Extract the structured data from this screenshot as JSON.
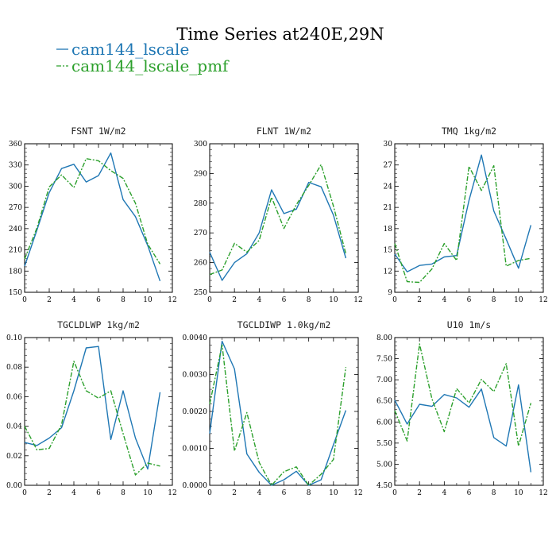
{
  "title": "Time Series at240E,29N",
  "legend": [
    {
      "label": "cam144_lscale",
      "color": "#1f77b4",
      "dash": "solid"
    },
    {
      "label": "cam144_lscale_pmf",
      "color": "#2ca02c",
      "dash": "dashdot"
    }
  ],
  "chart_data": [
    {
      "type": "line",
      "title": "FSNT   1W/m2",
      "x": [
        0,
        1,
        2,
        3,
        4,
        5,
        6,
        7,
        8,
        9,
        10,
        11
      ],
      "xlim": [
        0,
        12
      ],
      "xticks": [
        0,
        2,
        4,
        6,
        8,
        10,
        12
      ],
      "ylim": [
        150,
        360
      ],
      "yticks": [
        150,
        180,
        210,
        240,
        270,
        300,
        330,
        360
      ],
      "ytick_labels": [
        "150",
        "180",
        "210",
        "240",
        "270",
        "300",
        "330",
        "360"
      ],
      "series": [
        {
          "name": "cam144_lscale",
          "values": [
            187,
            238,
            291,
            325,
            331,
            306,
            315,
            347,
            281,
            257,
            216,
            166
          ]
        },
        {
          "name": "cam144_lscale_pmf",
          "values": [
            197,
            241,
            299,
            316,
            298,
            339,
            336,
            322,
            311,
            276,
            218,
            190
          ]
        }
      ]
    },
    {
      "type": "line",
      "title": "FLNT   1W/m2",
      "x": [
        0,
        1,
        2,
        3,
        4,
        5,
        6,
        7,
        8,
        9,
        10,
        11
      ],
      "xlim": [
        0,
        12
      ],
      "xticks": [
        0,
        2,
        4,
        6,
        8,
        10,
        12
      ],
      "ylim": [
        250,
        300
      ],
      "yticks": [
        250,
        260,
        270,
        280,
        290,
        300
      ],
      "ytick_labels": [
        "250",
        "260",
        "270",
        "280",
        "290",
        "300"
      ],
      "series": [
        {
          "name": "cam144_lscale",
          "values": [
            263.5,
            254,
            260,
            263,
            270,
            284.5,
            276.5,
            278,
            287,
            285.5,
            276,
            261.5
          ]
        },
        {
          "name": "cam144_lscale_pmf",
          "values": [
            256,
            257.5,
            266.5,
            263.5,
            267.5,
            282,
            271.5,
            279.5,
            286,
            293,
            279,
            263
          ]
        }
      ]
    },
    {
      "type": "line",
      "title": "TMQ   1kg/m2",
      "x": [
        0,
        1,
        2,
        3,
        4,
        5,
        6,
        7,
        8,
        9,
        10,
        11
      ],
      "xlim": [
        0,
        12
      ],
      "xticks": [
        0,
        2,
        4,
        6,
        8,
        10,
        12
      ],
      "ylim": [
        9,
        30
      ],
      "yticks": [
        9,
        12,
        15,
        18,
        21,
        24,
        27,
        30
      ],
      "ytick_labels": [
        "9",
        "12",
        "15",
        "18",
        "21",
        "24",
        "27",
        "30"
      ],
      "series": [
        {
          "name": "cam144_lscale",
          "values": [
            14.4,
            11.9,
            12.8,
            13.0,
            14.0,
            14.2,
            22.0,
            28.4,
            20.5,
            16.5,
            12.4,
            18.5
          ]
        },
        {
          "name": "cam144_lscale_pmf",
          "values": [
            15.9,
            10.5,
            10.4,
            12.3,
            15.9,
            13.5,
            26.8,
            23.4,
            26.9,
            12.7,
            13.5,
            13.8
          ]
        }
      ]
    },
    {
      "type": "line",
      "title": "TGCLDLWP   1kg/m2",
      "x": [
        0,
        1,
        2,
        3,
        4,
        5,
        6,
        7,
        8,
        9,
        10,
        11
      ],
      "xlim": [
        0,
        12
      ],
      "xticks": [
        0,
        2,
        4,
        6,
        8,
        10,
        12
      ],
      "ylim": [
        0.0,
        0.1
      ],
      "yticks": [
        0.0,
        0.02,
        0.04,
        0.06,
        0.08,
        0.1
      ],
      "ytick_labels": [
        "0.00",
        "0.02",
        "0.04",
        "0.06",
        "0.08",
        "0.10"
      ],
      "series": [
        {
          "name": "cam144_lscale",
          "values": [
            0.029,
            0.027,
            0.032,
            0.039,
            0.064,
            0.093,
            0.094,
            0.031,
            0.064,
            0.032,
            0.011,
            0.063
          ]
        },
        {
          "name": "cam144_lscale_pmf",
          "values": [
            0.04,
            0.024,
            0.025,
            0.041,
            0.084,
            0.064,
            0.059,
            0.064,
            0.035,
            0.007,
            0.015,
            0.013
          ]
        }
      ]
    },
    {
      "type": "line",
      "title": "TGCLDIWP   1.0kg/m2",
      "x": [
        0,
        1,
        2,
        3,
        4,
        5,
        6,
        7,
        8,
        9,
        10,
        11
      ],
      "xlim": [
        0,
        12
      ],
      "xticks": [
        0,
        2,
        4,
        6,
        8,
        10,
        12
      ],
      "ylim": [
        0.0,
        0.004
      ],
      "yticks": [
        0.0,
        0.001,
        0.002,
        0.003,
        0.004
      ],
      "ytick_labels": [
        "0.0000",
        "0.0010",
        "0.0020",
        "0.0030",
        "0.0040"
      ],
      "series": [
        {
          "name": "cam144_lscale",
          "values": [
            0.0014,
            0.0039,
            0.00315,
            0.00085,
            0.00035,
            0.0,
            0.00015,
            0.00038,
            0.0,
            0.00015,
            0.0011,
            0.00203
          ]
        },
        {
          "name": "cam144_lscale_pmf",
          "values": [
            0.0022,
            0.0038,
            0.00093,
            0.00197,
            0.00062,
            0.0,
            0.00037,
            0.0005,
            0.0,
            0.0003,
            0.0007,
            0.0032
          ]
        }
      ]
    },
    {
      "type": "line",
      "title": "U10   1m/s",
      "x": [
        0,
        1,
        2,
        3,
        4,
        5,
        6,
        7,
        8,
        9,
        10,
        11
      ],
      "xlim": [
        0,
        12
      ],
      "xticks": [
        0,
        2,
        4,
        6,
        8,
        10,
        12
      ],
      "ylim": [
        4.5,
        8.0
      ],
      "yticks": [
        4.5,
        5.0,
        5.5,
        6.0,
        6.5,
        7.0,
        7.5,
        8.0
      ],
      "ytick_labels": [
        "4.50",
        "5.00",
        "5.50",
        "6.00",
        "6.50",
        "7.00",
        "7.50",
        "8.00"
      ],
      "series": [
        {
          "name": "cam144_lscale",
          "values": [
            6.52,
            5.95,
            6.42,
            6.37,
            6.65,
            6.57,
            6.35,
            6.78,
            5.63,
            5.43,
            6.88,
            4.81
          ]
        },
        {
          "name": "cam144_lscale_pmf",
          "values": [
            6.27,
            5.55,
            7.85,
            6.55,
            5.77,
            6.79,
            6.45,
            7.01,
            6.72,
            7.38,
            5.43,
            6.45
          ]
        }
      ]
    }
  ]
}
